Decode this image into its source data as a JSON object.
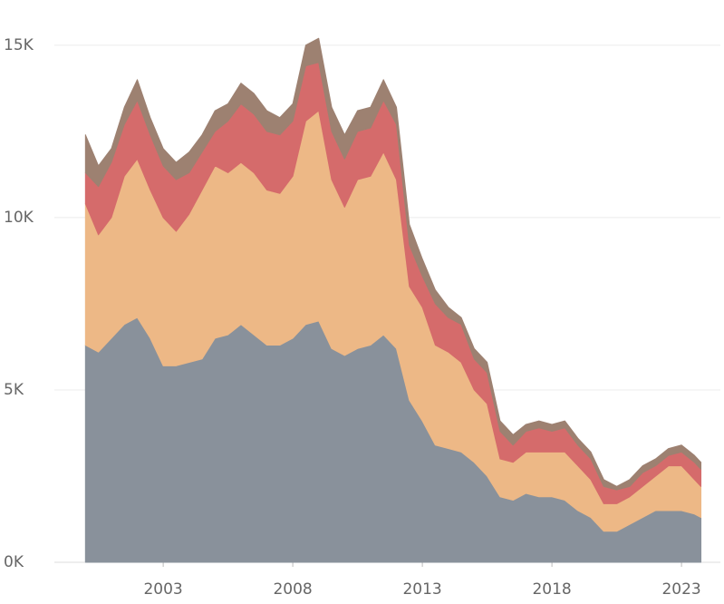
{
  "chart_data": {
    "type": "stacked_area",
    "x": [
      2000,
      2000.5,
      2001,
      2001.5,
      2002,
      2002.5,
      2003,
      2003.5,
      2004,
      2004.5,
      2005,
      2005.5,
      2006,
      2006.5,
      2007,
      2007.5,
      2008,
      2008.5,
      2009,
      2009.5,
      2010,
      2010.5,
      2011,
      2011.5,
      2012,
      2012.5,
      2013,
      2013.5,
      2014,
      2014.5,
      2015,
      2015.5,
      2016,
      2016.5,
      2017,
      2017.5,
      2018,
      2018.5,
      2019,
      2019.5,
      2020,
      2020.5,
      2021,
      2021.5,
      2022,
      2022.5,
      2023,
      2023.5,
      2023.75
    ],
    "series": [
      {
        "color": "#939ca7",
        "values": [
          6300,
          6100,
          6500,
          6900,
          7100,
          6500,
          5700,
          5700,
          5800,
          5900,
          6500,
          6600,
          6900,
          6600,
          6300,
          6300,
          6500,
          6900,
          7000,
          6200,
          6000,
          6200,
          6300,
          6600,
          6200,
          4700,
          4100,
          3400,
          3300,
          3200,
          2900,
          2500,
          1900,
          1800,
          2000,
          1900,
          1900,
          1800,
          1500,
          1300,
          900,
          900,
          1100,
          1300,
          1500,
          1500,
          1500,
          1400,
          1300
        ]
      },
      {
        "color": "#ffc690",
        "values": [
          4100,
          3400,
          3500,
          4300,
          4600,
          4300,
          4300,
          3900,
          4300,
          4900,
          5000,
          4700,
          4700,
          4700,
          4500,
          4400,
          4700,
          5900,
          6100,
          4900,
          4300,
          4900,
          4900,
          5300,
          4900,
          3300,
          3300,
          2900,
          2800,
          2600,
          2100,
          2100,
          1100,
          1100,
          1200,
          1300,
          1300,
          1400,
          1300,
          1100,
          800,
          800,
          800,
          900,
          1000,
          1300,
          1300,
          1000,
          900
        ]
      },
      {
        "color": "#e57373",
        "values": [
          900,
          1400,
          1600,
          1500,
          1700,
          1600,
          1500,
          1500,
          1200,
          1100,
          1000,
          1500,
          1700,
          1700,
          1700,
          1700,
          1600,
          1600,
          1400,
          1400,
          1400,
          1400,
          1400,
          1500,
          1600,
          1200,
          900,
          1200,
          1000,
          1100,
          900,
          900,
          800,
          500,
          600,
          700,
          600,
          700,
          600,
          600,
          500,
          400,
          300,
          400,
          300,
          300,
          400,
          500,
          500
        ]
      },
      {
        "color": "#a98b7a",
        "values": [
          1100,
          600,
          400,
          500,
          600,
          500,
          500,
          500,
          600,
          500,
          600,
          500,
          600,
          600,
          600,
          500,
          500,
          600,
          700,
          700,
          700,
          600,
          600,
          600,
          500,
          600,
          500,
          400,
          300,
          200,
          300,
          300,
          300,
          300,
          200,
          200,
          200,
          200,
          200,
          200,
          200,
          100,
          200,
          200,
          200,
          200,
          200,
          200,
          200
        ]
      }
    ],
    "xlim": [
      1998.8,
      2024.5
    ],
    "xticks": [
      2003,
      2008,
      2013,
      2018,
      2023
    ],
    "ylim": [
      0,
      16100
    ],
    "yticks": [
      {
        "value": 0,
        "label": "0K"
      },
      {
        "value": 5000,
        "label": "5K"
      },
      {
        "value": 10000,
        "label": "10K"
      },
      {
        "value": 15000,
        "label": "15K"
      }
    ],
    "grid": true
  }
}
